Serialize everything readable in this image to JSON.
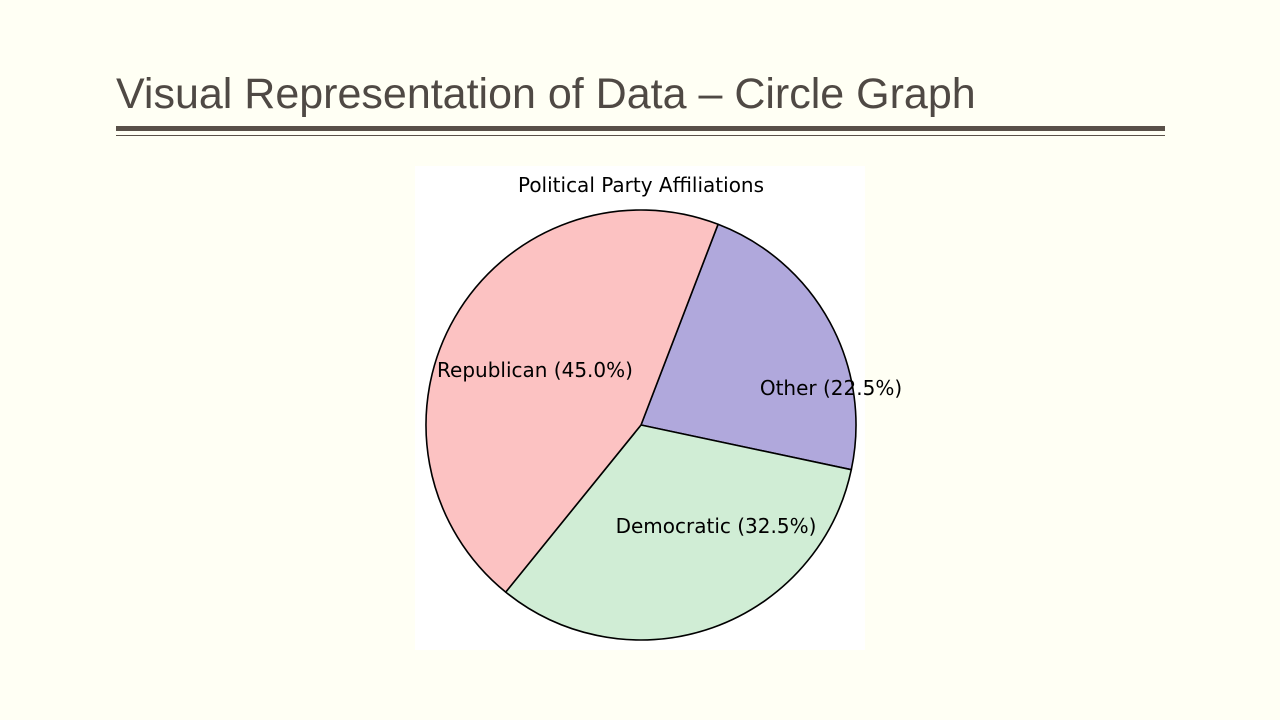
{
  "slide": {
    "title": "Visual Representation of Data – Circle Graph"
  },
  "chart_data": {
    "type": "pie",
    "title": "Political Party Affiliations",
    "start": "top, clockwise from Other",
    "slices": [
      {
        "name": "Other",
        "value": 22.5,
        "label": "Other (22.5%)",
        "color": "#b0a8dc"
      },
      {
        "name": "Democratic",
        "value": 32.5,
        "label": "Democratic (32.5%)",
        "color": "#d0edd5"
      },
      {
        "name": "Republican",
        "value": 45.0,
        "label": "Republican (45.0%)",
        "color": "#fcc2c2"
      }
    ],
    "outline_color": "#000000"
  }
}
